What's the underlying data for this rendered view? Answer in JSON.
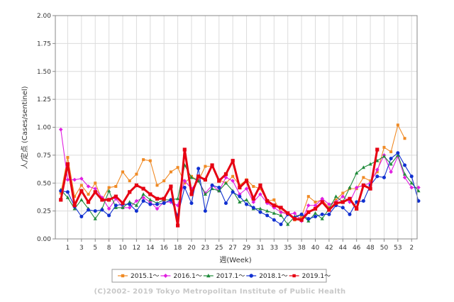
{
  "chart_data": {
    "type": "line",
    "xlabel": "週(Week)",
    "ylabel": "人/定点 (Cases/sentinel)",
    "ylim": [
      0,
      2
    ],
    "yticks": [
      "0.00",
      "0.25",
      "0.50",
      "0.75",
      "1.00",
      "1.25",
      "1.50",
      "1.75",
      "2.00"
    ],
    "x_tick_labels": [
      "1",
      "3",
      "5",
      "8",
      "10",
      "12",
      "14",
      "16",
      "18",
      "20",
      "23",
      "25",
      "27",
      "29",
      "31",
      "33",
      "35",
      "38",
      "40",
      "42",
      "44",
      "46",
      "48",
      "50",
      "53",
      "2"
    ],
    "x_tick_positions": [
      1,
      3,
      5,
      7,
      9,
      11,
      13,
      15,
      17,
      19,
      21,
      23,
      25,
      27,
      29,
      31,
      33,
      35,
      37,
      39,
      41,
      43,
      45,
      47,
      49,
      51
    ],
    "grid": true,
    "legend_position": "bottom",
    "series": [
      {
        "name": "2015.1～",
        "color": "#f08a24",
        "marker": "square",
        "x": [
          0,
          1,
          2,
          3,
          4,
          5,
          6,
          7,
          8,
          9,
          10,
          11,
          12,
          13,
          14,
          15,
          16,
          17,
          18,
          19,
          20,
          21,
          22,
          23,
          24,
          25,
          26,
          27,
          28,
          29,
          30,
          31,
          32,
          33,
          34,
          35,
          36,
          37,
          38,
          39,
          40,
          41,
          42,
          43,
          44,
          45,
          46,
          47,
          48,
          49,
          50
        ],
        "values": [
          0.41,
          0.73,
          0.38,
          0.48,
          0.4,
          0.5,
          0.35,
          0.46,
          0.47,
          0.6,
          0.52,
          0.58,
          0.71,
          0.7,
          0.48,
          0.52,
          0.6,
          0.64,
          0.5,
          0.56,
          0.52,
          0.65,
          0.65,
          0.53,
          0.5,
          0.56,
          0.48,
          0.53,
          0.47,
          0.45,
          0.34,
          0.35,
          0.24,
          0.23,
          0.17,
          0.2,
          0.38,
          0.33,
          0.35,
          0.28,
          0.35,
          0.41,
          0.45,
          0.45,
          0.55,
          0.52,
          0.6,
          0.82,
          0.78,
          1.02,
          0.9
        ]
      },
      {
        "name": "2016.1～",
        "color": "#e020e0",
        "marker": "diamond",
        "x": [
          0,
          1,
          2,
          3,
          4,
          5,
          6,
          7,
          8,
          9,
          10,
          11,
          12,
          13,
          14,
          15,
          16,
          17,
          18,
          19,
          20,
          21,
          22,
          23,
          24,
          25,
          26,
          27,
          28,
          29,
          30,
          31,
          32,
          33,
          34,
          35,
          36,
          37,
          38,
          39,
          40,
          41,
          42,
          43,
          44,
          45,
          46,
          47,
          48,
          49,
          50,
          51,
          52
        ],
        "values": [
          0.98,
          0.53,
          0.53,
          0.54,
          0.47,
          0.45,
          0.37,
          0.27,
          0.36,
          0.28,
          0.28,
          0.34,
          0.37,
          0.33,
          0.27,
          0.33,
          0.33,
          0.3,
          0.52,
          0.45,
          0.52,
          0.41,
          0.48,
          0.43,
          0.55,
          0.52,
          0.4,
          0.45,
          0.33,
          0.4,
          0.32,
          0.28,
          0.24,
          0.22,
          0.23,
          0.16,
          0.3,
          0.3,
          0.36,
          0.31,
          0.33,
          0.38,
          0.33,
          0.46,
          0.48,
          0.5,
          0.62,
          0.75,
          0.6,
          0.74,
          0.55,
          0.46,
          0.46
        ]
      },
      {
        "name": "2017.1～",
        "color": "#1e8a3a",
        "marker": "triangle",
        "x": [
          0,
          1,
          2,
          3,
          4,
          5,
          6,
          7,
          8,
          9,
          10,
          11,
          12,
          13,
          14,
          15,
          16,
          17,
          18,
          19,
          20,
          21,
          22,
          23,
          24,
          25,
          26,
          27,
          28,
          29,
          30,
          31,
          32,
          33,
          34,
          35,
          36,
          37,
          38,
          39,
          40,
          41,
          42,
          43,
          44,
          45,
          46,
          47,
          48,
          49,
          50,
          51,
          52
        ],
        "values": [
          0.44,
          0.37,
          0.27,
          0.35,
          0.27,
          0.18,
          0.27,
          0.43,
          0.28,
          0.28,
          0.33,
          0.3,
          0.4,
          0.35,
          0.32,
          0.35,
          0.35,
          0.36,
          0.66,
          0.55,
          0.52,
          0.4,
          0.45,
          0.43,
          0.5,
          0.43,
          0.33,
          0.35,
          0.27,
          0.27,
          0.25,
          0.23,
          0.21,
          0.13,
          0.2,
          0.22,
          0.16,
          0.23,
          0.18,
          0.27,
          0.38,
          0.33,
          0.46,
          0.59,
          0.64,
          0.67,
          0.7,
          0.74,
          0.67,
          0.75,
          0.58,
          0.5,
          0.43
        ]
      },
      {
        "name": "2018.1～",
        "color": "#1030d0",
        "marker": "circle",
        "x": [
          0,
          1,
          2,
          3,
          4,
          5,
          6,
          7,
          8,
          9,
          10,
          11,
          12,
          13,
          14,
          15,
          16,
          17,
          18,
          19,
          20,
          21,
          22,
          23,
          24,
          25,
          26,
          27,
          28,
          29,
          30,
          31,
          32,
          33,
          34,
          35,
          36,
          37,
          38,
          39,
          40,
          41,
          42,
          43,
          44,
          45,
          46,
          47,
          48,
          49,
          50,
          51,
          52
        ],
        "values": [
          0.43,
          0.42,
          0.29,
          0.2,
          0.26,
          0.25,
          0.26,
          0.21,
          0.3,
          0.31,
          0.31,
          0.25,
          0.34,
          0.31,
          0.31,
          0.32,
          0.35,
          0.21,
          0.46,
          0.32,
          0.63,
          0.25,
          0.48,
          0.46,
          0.32,
          0.42,
          0.38,
          0.31,
          0.28,
          0.24,
          0.21,
          0.17,
          0.13,
          0.22,
          0.19,
          0.22,
          0.18,
          0.2,
          0.22,
          0.22,
          0.3,
          0.28,
          0.22,
          0.33,
          0.34,
          0.48,
          0.56,
          0.55,
          0.72,
          0.77,
          0.66,
          0.56,
          0.34
        ]
      },
      {
        "name": "2019.1～",
        "color": "#e60012",
        "marker": "square",
        "x": [
          0,
          1,
          2,
          3,
          4,
          5,
          6,
          7,
          8,
          9,
          10,
          11,
          12,
          13,
          14,
          15,
          16,
          17,
          18,
          19,
          20,
          21,
          22,
          23,
          24,
          25,
          26,
          27,
          28,
          29,
          30,
          31,
          32,
          33,
          34,
          35,
          36,
          37,
          38,
          39,
          40,
          41,
          42,
          43,
          44,
          45,
          46
        ],
        "values": [
          0.35,
          0.67,
          0.3,
          0.43,
          0.33,
          0.42,
          0.35,
          0.35,
          0.38,
          0.32,
          0.42,
          0.48,
          0.45,
          0.4,
          0.36,
          0.36,
          0.47,
          0.12,
          0.8,
          0.4,
          0.56,
          0.53,
          0.66,
          0.52,
          0.58,
          0.7,
          0.46,
          0.52,
          0.36,
          0.48,
          0.34,
          0.3,
          0.28,
          0.23,
          0.18,
          0.17,
          0.24,
          0.27,
          0.33,
          0.26,
          0.32,
          0.33,
          0.36,
          0.27,
          0.48,
          0.45,
          0.8
        ]
      }
    ]
  },
  "footer": {
    "copyright": "(C)2002- 2019 Tokyo Metropolitan Institute of Public Health"
  }
}
